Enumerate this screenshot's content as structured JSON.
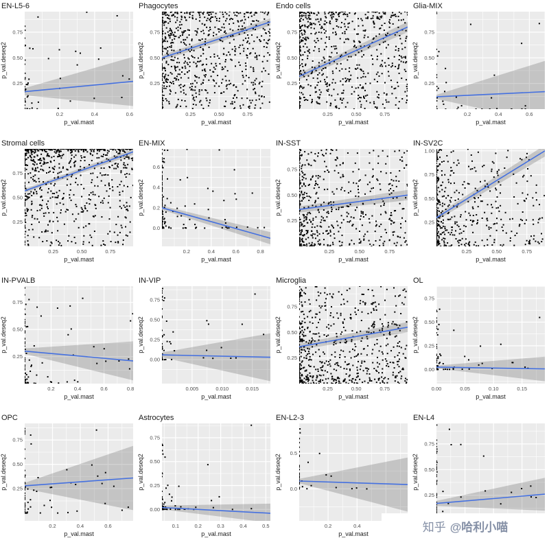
{
  "watermark": {
    "prefix": "知乎",
    "handle": "@哈利小喵",
    "color": "#8590a6"
  },
  "chart_meta": {
    "xlabel": "p_val.mast",
    "ylabel": "p_val.deseq2",
    "panel_bg": "#ebebeb",
    "grid_color": "#ffffff",
    "point_color": "#000000",
    "line_color": "#4470e0",
    "band_color": "rgba(80,80,80,0.25)",
    "title_color": "#1a1a1a",
    "tick_color": "#4d4d4d"
  },
  "chart_data": [
    {
      "type": "scatter",
      "title": "EN-L5-6",
      "xlim": [
        0,
        0.62
      ],
      "ylim": [
        0,
        0.95
      ],
      "x_ticks": [
        0.2,
        0.4,
        0.6
      ],
      "x_tick_labels": [
        "0.2",
        "0.4",
        "0.6"
      ],
      "y_ticks": [
        0.25,
        0.5,
        0.75
      ],
      "y_tick_labels": [
        "0.25",
        "0.50",
        "0.75"
      ],
      "trend": {
        "x": [
          0,
          0.62
        ],
        "y": [
          0.17,
          0.27
        ]
      },
      "band_halfwidth": [
        0.035,
        0.24
      ],
      "points": {
        "seed": 11,
        "clusters": [
          {
            "n": 45,
            "xpow": 7,
            "ypow": 2.5
          },
          {
            "n": 14,
            "xpow": 1.3,
            "ypow": 1.1
          }
        ]
      }
    },
    {
      "type": "scatter",
      "title": "Phagocytes",
      "xlim": [
        0,
        0.95
      ],
      "ylim": [
        0,
        0.95
      ],
      "x_ticks": [
        0.25,
        0.5,
        0.75
      ],
      "x_tick_labels": [
        "0.25",
        "0.50",
        "0.75"
      ],
      "y_ticks": [
        0.25,
        0.5,
        0.75
      ],
      "y_tick_labels": [
        "0.25",
        "0.50",
        "0.75"
      ],
      "trend": {
        "x": [
          0,
          0.95
        ],
        "y": [
          0.5,
          0.85
        ]
      },
      "band_halfwidth": [
        0.025,
        0.035
      ],
      "points": {
        "seed": 22,
        "clusters": [
          {
            "n": 420,
            "xpow": 1.6,
            "ypow": 2,
            "yflip": 1
          },
          {
            "n": 260,
            "xpow": 1,
            "ypow": 1
          },
          {
            "n": 100,
            "xpow": 40,
            "ypow": 1
          }
        ]
      }
    },
    {
      "type": "scatter",
      "title": "Endo cells",
      "xlim": [
        0,
        0.95
      ],
      "ylim": [
        0,
        0.95
      ],
      "x_ticks": [
        0.25,
        0.5,
        0.75
      ],
      "x_tick_labels": [
        "0.25",
        "0.50",
        "0.75"
      ],
      "y_ticks": [
        0.25,
        0.5,
        0.75
      ],
      "y_tick_labels": [
        "0.25",
        "0.50",
        "0.75"
      ],
      "trend": {
        "x": [
          0,
          0.95
        ],
        "y": [
          0.32,
          0.8
        ]
      },
      "band_halfwidth": [
        0.03,
        0.05
      ],
      "points": {
        "seed": 33,
        "clusters": [
          {
            "n": 400,
            "xpow": 1.8,
            "ypow": 1.8,
            "yflip": 1
          },
          {
            "n": 220,
            "xpow": 1,
            "ypow": 1
          },
          {
            "n": 80,
            "xpow": 40,
            "ypow": 1
          }
        ]
      }
    },
    {
      "type": "scatter",
      "title": "Glia-MIX",
      "xlim": [
        0,
        0.7
      ],
      "ylim": [
        0,
        0.95
      ],
      "x_ticks": [
        0.2,
        0.4,
        0.6
      ],
      "x_tick_labels": [
        "0.2",
        "0.4",
        "0.6"
      ],
      "y_ticks": [
        0.25,
        0.5,
        0.75
      ],
      "y_tick_labels": [
        "0.25",
        "0.50",
        "0.75"
      ],
      "trend": {
        "x": [
          0,
          0.7
        ],
        "y": [
          0.12,
          0.17
        ]
      },
      "band_halfwidth": [
        0.02,
        0.3
      ],
      "points": {
        "seed": 44,
        "clusters": [
          {
            "n": 30,
            "xpow": 9,
            "ypow": 2.2
          },
          {
            "n": 16,
            "xpow": 1.5,
            "ypow": 7
          }
        ]
      }
    },
    {
      "type": "scatter",
      "title": "Stromal cells",
      "xlim": [
        0,
        0.95
      ],
      "ylim": [
        0,
        1.0
      ],
      "x_ticks": [
        0.25,
        0.5,
        0.75
      ],
      "x_tick_labels": [
        "0.25",
        "0.50",
        "0.75"
      ],
      "y_ticks": [
        0.25,
        0.5,
        0.75
      ],
      "y_tick_labels": [
        "0.25",
        "0.50",
        "0.75"
      ],
      "trend": {
        "x": [
          0,
          0.95
        ],
        "y": [
          0.57,
          0.97
        ]
      },
      "band_halfwidth": [
        0.02,
        0.03
      ],
      "points": {
        "seed": 55,
        "clusters": [
          {
            "n": 420,
            "xpow": 1.5,
            "ypow": 2.6,
            "yflip": 1
          },
          {
            "n": 200,
            "xpow": 1,
            "ypow": 1.4,
            "yflip": 1
          },
          {
            "n": 100,
            "xpow": 1.2,
            "ypow": 40,
            "yflip": 1
          },
          {
            "n": 70,
            "xpow": 40,
            "ypow": 1
          }
        ]
      }
    },
    {
      "type": "scatter",
      "title": "EN-MIX",
      "xlim": [
        0,
        0.88
      ],
      "ylim": [
        -0.18,
        0.78
      ],
      "x_ticks": [
        0.2,
        0.4,
        0.6,
        0.8
      ],
      "x_tick_labels": [
        "0.2",
        "0.4",
        "0.6",
        "0.8"
      ],
      "y_ticks": [
        0,
        0.2,
        0.4,
        0.6
      ],
      "y_tick_labels": [
        "0.0",
        "0.2",
        "0.4",
        "0.6"
      ],
      "trend": {
        "x": [
          0,
          0.88
        ],
        "y": [
          0.2,
          -0.1
        ]
      },
      "band_halfwidth": [
        0.02,
        0.06
      ],
      "points": {
        "seed": 66,
        "clusters": [
          {
            "n": 130,
            "xpow": 25,
            "ypow": 2.8
          },
          {
            "n": 60,
            "xpow": 3.5,
            "ypow": 3.5
          },
          {
            "n": 8,
            "xpow": 2,
            "ypow": 1.2,
            "yflip": 1
          }
        ]
      }
    },
    {
      "type": "scatter",
      "title": "IN-SST",
      "xlim": [
        0,
        0.9
      ],
      "ylim": [
        0,
        0.95
      ],
      "x_ticks": [
        0.25,
        0.5,
        0.75
      ],
      "x_tick_labels": [
        "0.25",
        "0.50",
        "0.75"
      ],
      "y_ticks": [
        0.25,
        0.5,
        0.75
      ],
      "y_tick_labels": [
        "0.25",
        "0.50",
        "0.75"
      ],
      "trend": {
        "x": [
          0,
          0.9
        ],
        "y": [
          0.36,
          0.5
        ]
      },
      "band_halfwidth": [
        0.03,
        0.05
      ],
      "points": {
        "seed": 77,
        "clusters": [
          {
            "n": 360,
            "xpow": 2.6,
            "ypow": 1.6
          },
          {
            "n": 160,
            "xpow": 1.2,
            "ypow": 1.2
          },
          {
            "n": 90,
            "xpow": 40,
            "ypow": 1
          }
        ]
      }
    },
    {
      "type": "scatter",
      "title": "IN-SV2C",
      "xlim": [
        0,
        0.9
      ],
      "ylim": [
        0,
        1.02
      ],
      "x_ticks": [
        0.25,
        0.5,
        0.75
      ],
      "x_tick_labels": [
        "0.25",
        "0.50",
        "0.75"
      ],
      "y_ticks": [
        0.25,
        0.5,
        0.75,
        1.0
      ],
      "y_tick_labels": [
        "0.25",
        "0.50",
        "0.75",
        "1.00"
      ],
      "trend": {
        "x": [
          0,
          0.9
        ],
        "y": [
          0.3,
          1.0
        ]
      },
      "band_halfwidth": [
        0.03,
        0.06
      ],
      "points": {
        "seed": 88,
        "clusters": [
          {
            "n": 320,
            "xpow": 3,
            "ypow": 1.6
          },
          {
            "n": 120,
            "xpow": 40,
            "ypow": 1.2
          },
          {
            "n": 100,
            "xpow": 1.3,
            "ypow": 1.3
          }
        ]
      }
    },
    {
      "type": "scatter",
      "title": "IN-PVALB",
      "xlim": [
        0,
        0.82
      ],
      "ylim": [
        0,
        0.9
      ],
      "x_ticks": [
        0.2,
        0.4,
        0.6,
        0.8
      ],
      "x_tick_labels": [
        "0.2",
        "0.4",
        "0.6",
        "0.8"
      ],
      "y_ticks": [
        0.25,
        0.5,
        0.75
      ],
      "y_tick_labels": [
        "0.25",
        "0.50",
        "0.75"
      ],
      "trend": {
        "x": [
          0,
          0.82
        ],
        "y": [
          0.3,
          0.21
        ]
      },
      "band_halfwidth": [
        0.025,
        0.18
      ],
      "points": {
        "seed": 99,
        "clusters": [
          {
            "n": 70,
            "xpow": 14,
            "ypow": 2.4
          },
          {
            "n": 26,
            "xpow": 2,
            "ypow": 1.8
          }
        ]
      }
    },
    {
      "type": "scatter",
      "title": "IN-VIP",
      "xlim": [
        0,
        0.018
      ],
      "ylim": [
        -0.3,
        0.92
      ],
      "x_ticks": [
        0.005,
        0.01,
        0.015
      ],
      "x_tick_labels": [
        "0.005",
        "0.010",
        "0.015"
      ],
      "y_ticks": [
        0,
        0.25,
        0.5,
        0.75
      ],
      "y_tick_labels": [
        "0.00",
        "0.25",
        "0.50",
        "0.75"
      ],
      "trend": {
        "x": [
          0,
          0.018
        ],
        "y": [
          0.06,
          0.03
        ]
      },
      "band_halfwidth": [
        0.03,
        0.3
      ],
      "points": {
        "seed": 110,
        "clusters": [
          {
            "n": 45,
            "xpow": 12,
            "ypow": 3.5
          },
          {
            "n": 12,
            "xpow": 2.5,
            "ypow": 2
          }
        ]
      }
    },
    {
      "type": "scatter",
      "title": "Microglia",
      "xlim": [
        0,
        0.95
      ],
      "ylim": [
        0,
        0.95
      ],
      "x_ticks": [
        0.25,
        0.5,
        0.75
      ],
      "x_tick_labels": [
        "0.25",
        "0.50",
        "0.75"
      ],
      "y_ticks": [
        0.25,
        0.5,
        0.75
      ],
      "y_tick_labels": [
        "0.25",
        "0.50",
        "0.75"
      ],
      "trend": {
        "x": [
          0,
          0.95
        ],
        "y": [
          0.36,
          0.55
        ]
      },
      "band_halfwidth": [
        0.03,
        0.05
      ],
      "points": {
        "seed": 121,
        "clusters": [
          {
            "n": 400,
            "xpow": 1.9,
            "ypow": 1.9
          },
          {
            "n": 200,
            "xpow": 1.1,
            "ypow": 1.1
          },
          {
            "n": 50,
            "xpow": 40,
            "ypow": 1.5
          }
        ]
      }
    },
    {
      "type": "scatter",
      "title": "OL",
      "xlim": [
        0,
        0.19
      ],
      "ylim": [
        -0.15,
        0.88
      ],
      "x_ticks": [
        0,
        0.05,
        0.1,
        0.15
      ],
      "x_tick_labels": [
        "0.00",
        "0.05",
        "0.10",
        "0.15"
      ],
      "y_ticks": [
        0,
        0.25,
        0.5,
        0.75
      ],
      "y_tick_labels": [
        "0.00",
        "0.25",
        "0.50",
        "0.75"
      ],
      "trend": {
        "x": [
          0,
          0.19
        ],
        "y": [
          0.025,
          0.005
        ]
      },
      "band_halfwidth": [
        0.015,
        0.13
      ],
      "points": {
        "seed": 132,
        "clusters": [
          {
            "n": 55,
            "xpow": 12,
            "ypow": 4
          },
          {
            "n": 14,
            "xpow": 2.5,
            "ypow": 6
          }
        ]
      }
    },
    {
      "type": "scatter",
      "title": "OPC",
      "xlim": [
        0,
        0.78
      ],
      "ylim": [
        -0.08,
        0.92
      ],
      "x_ticks": [
        0.2,
        0.4,
        0.6
      ],
      "x_tick_labels": [
        "0.2",
        "0.4",
        "0.6"
      ],
      "y_ticks": [
        0.25,
        0.5,
        0.75
      ],
      "y_tick_labels": [
        "0.25",
        "0.50",
        "0.75"
      ],
      "trend": {
        "x": [
          0,
          0.78
        ],
        "y": [
          0.28,
          0.36
        ]
      },
      "band_halfwidth": [
        0.03,
        0.33
      ],
      "points": {
        "seed": 143,
        "clusters": [
          {
            "n": 60,
            "xpow": 11,
            "ypow": 2.6
          },
          {
            "n": 18,
            "xpow": 2,
            "ypow": 2.5
          }
        ]
      }
    },
    {
      "type": "scatter",
      "title": "Astrocytes",
      "xlim": [
        0.04,
        0.52
      ],
      "ylim": [
        -0.12,
        0.9
      ],
      "x_ticks": [
        0.1,
        0.2,
        0.3,
        0.4,
        0.5
      ],
      "x_tick_labels": [
        "0.1",
        "0.2",
        "0.3",
        "0.4",
        "0.5"
      ],
      "y_ticks": [
        0,
        0.25,
        0.5,
        0.75
      ],
      "y_tick_labels": [
        "0.00",
        "0.25",
        "0.50",
        "0.75"
      ],
      "trend": {
        "x": [
          0.04,
          0.52
        ],
        "y": [
          0.02,
          -0.04
        ]
      },
      "band_halfwidth": [
        0.02,
        0.1
      ],
      "points": {
        "seed": 154,
        "clusters": [
          {
            "n": 55,
            "xpow": 9,
            "ypow": 5
          },
          {
            "n": 12,
            "xpow": 2,
            "ypow": 3
          }
        ]
      }
    },
    {
      "type": "scatter",
      "title": "EN-L2-3",
      "xlim": [
        0,
        0.75
      ],
      "ylim": [
        -0.45,
        0.92
      ],
      "x_ticks": [
        0.2,
        0.4,
        0.6
      ],
      "x_tick_labels": [
        "0.2",
        "0.4",
        "0.6"
      ],
      "y_ticks": [
        0,
        0.5
      ],
      "y_tick_labels": [
        "0.0",
        "0.5"
      ],
      "trend": {
        "x": [
          0,
          0.75
        ],
        "y": [
          0.11,
          0.06
        ]
      },
      "band_halfwidth": [
        0.03,
        0.38
      ],
      "points": {
        "seed": 165,
        "clusters": [
          {
            "n": 40,
            "xpow": 18,
            "ypow": 2.5
          },
          {
            "n": 6,
            "xpow": 2,
            "ypow": 2
          }
        ]
      }
    },
    {
      "type": "scatter",
      "title": "EN-L4",
      "xlim": [
        0,
        0.95
      ],
      "ylim": [
        0,
        0.95
      ],
      "x_ticks": [
        0.25,
        0.5,
        0.75
      ],
      "x_tick_labels": [
        "0.25",
        "0.50",
        "0.75"
      ],
      "y_ticks": [
        0.25,
        0.5,
        0.75
      ],
      "y_tick_labels": [
        "0.25",
        "0.50",
        "0.75"
      ],
      "trend": {
        "x": [
          0,
          0.95
        ],
        "y": [
          0.17,
          0.26
        ]
      },
      "band_halfwidth": [
        0.025,
        0.16
      ],
      "points": {
        "seed": 176,
        "clusters": [
          {
            "n": 55,
            "xpow": 16,
            "ypow": 2.2
          },
          {
            "n": 15,
            "xpow": 2,
            "ypow": 1.6
          }
        ]
      }
    }
  ]
}
